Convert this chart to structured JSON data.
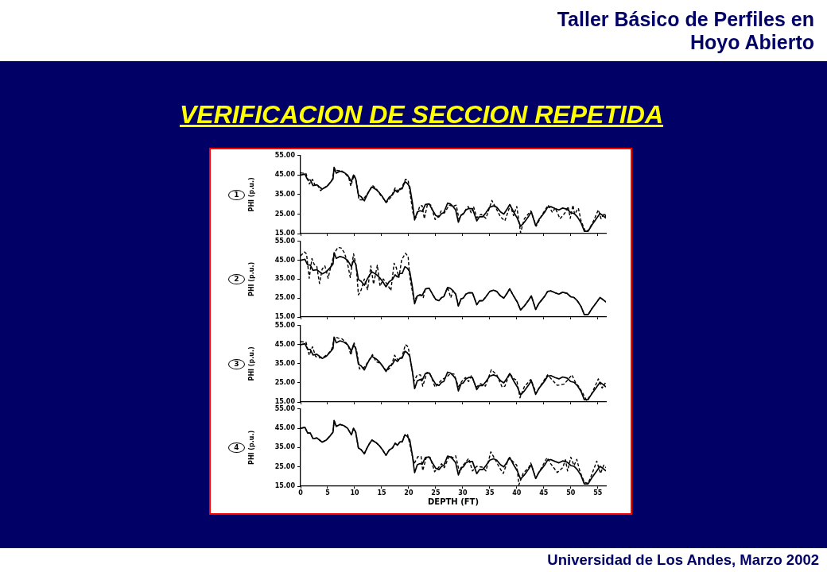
{
  "chart_data": [
    {
      "type": "line",
      "title": "1",
      "ylabel": "PHI (p.u.)",
      "xlim": [
        0,
        56.5
      ],
      "ylim": [
        15,
        55
      ],
      "xticks": [
        0,
        5,
        10,
        15,
        20,
        25,
        30,
        35,
        40,
        45,
        50,
        55
      ],
      "yticks": [
        {
          "value": 15,
          "label": "15.00"
        },
        {
          "value": 25,
          "label": "25.00"
        },
        {
          "value": 35,
          "label": "35.00"
        },
        {
          "value": 45,
          "label": "45.00"
        },
        {
          "value": 55,
          "label": "55.00"
        }
      ],
      "tick_labels": "y",
      "annotations": [
        "VERIFICACION DE SECCION REPETIDA",
        "Taller Básico de Perfiles en Hoyo Abierto",
        "Universidad de Los Andes, Marzo 2002"
      ],
      "series": [
        {
          "color": "#000000",
          "line_style": "solid",
          "x": [
            0,
            0.8,
            1.3,
            1.8,
            2.3,
            3,
            3.5,
            4,
            4.8,
            5.5,
            6,
            6.2,
            6.6,
            7.3,
            8,
            8.7,
            9.4,
            9.8,
            10.2,
            10.7,
            11.2,
            11.8,
            12.3,
            12.7,
            13.2,
            14,
            14.6,
            15.2,
            15.8,
            16.4,
            17,
            17.5,
            17.9,
            18.4,
            18.8,
            19.3,
            19.7,
            20.2,
            20.7,
            21.1,
            21.6,
            22.1,
            22.5,
            23.1,
            23.8,
            24.4,
            25,
            25.6,
            26.1,
            26.5,
            27.2,
            27.7,
            28.2,
            28.7,
            29.2,
            29.7,
            30.1,
            30.6,
            31.1,
            31.8,
            32.6,
            33.1,
            33.7,
            34.3,
            35,
            35.7,
            36.3,
            37,
            37.6,
            38.2,
            38.7,
            39.5,
            40.1,
            40.7,
            41.4,
            42.2,
            42.7,
            43.5,
            44.1,
            44.7,
            45.2,
            45.7,
            46.3,
            47.1,
            47.8,
            48.5,
            49.3,
            50,
            50.6,
            51.2,
            51.9,
            52.5,
            53.2,
            53.9,
            54.7,
            55.4,
            55.9,
            56.5
          ],
          "values": [
            45,
            45.5,
            42.6,
            42.5,
            39.6,
            40,
            38.9,
            37.8,
            39,
            41.2,
            43,
            49,
            46,
            47,
            46.4,
            45,
            41.6,
            45,
            43,
            34.8,
            33.9,
            31.8,
            34.8,
            36.9,
            38.9,
            37.5,
            35.9,
            33.7,
            31,
            33.7,
            34.8,
            37.3,
            36.2,
            38,
            38,
            41.6,
            40.9,
            39,
            30.6,
            22,
            26.1,
            26.7,
            26.4,
            29.9,
            30.2,
            27.1,
            24.3,
            23.6,
            25.3,
            25.7,
            30.6,
            30.2,
            28.9,
            27.1,
            20.8,
            24.6,
            25,
            27.1,
            27.8,
            27.8,
            21.5,
            23.6,
            23.6,
            25.7,
            28.5,
            29.2,
            28.5,
            26.1,
            25,
            27.5,
            29.9,
            25.7,
            22.9,
            18.7,
            20.8,
            23.9,
            26.1,
            19,
            22.2,
            24.3,
            26.1,
            28.5,
            28.8,
            27.8,
            27.1,
            28.1,
            27.5,
            25.7,
            25.3,
            23.6,
            20.5,
            16.2,
            16.2,
            19.4,
            22.5,
            25.3,
            24.3,
            22.9
          ]
        },
        {
          "color": "#000000",
          "line_style": "dashed",
          "x": [
            0,
            1,
            1.6,
            2.2,
            2.7,
            3.2,
            3.7,
            4.3,
            5.1,
            5.8,
            6.3,
            6.9,
            7.5,
            8.3,
            8.9,
            9.3,
            9.9,
            10.3,
            10.8,
            11.5,
            12.3,
            13.3,
            14.1,
            14.7,
            15.9,
            16.7,
            17.5,
            18.1,
            18.7,
            19.4,
            19.9,
            20.8,
            21.3,
            22.1,
            22.5,
            22.9,
            23.5,
            24.1,
            24.9,
            25.5,
            26,
            26.6,
            27.5,
            28.2,
            28.8,
            29.3,
            30.1,
            31,
            31.6,
            32,
            32.6,
            33.4,
            34.3,
            35.4,
            36,
            37,
            37.8,
            38.8,
            39.4,
            40,
            40.7,
            41.4,
            42.6,
            43.6,
            44.6,
            45.8,
            46.6,
            47.1,
            48,
            48.9,
            49.5,
            49.9,
            50.4,
            50.7,
            51.4,
            51.9,
            52.7,
            53.3,
            54.2,
            55.1,
            55.6,
            56.2,
            56.5
          ],
          "values": [
            46.1,
            45.8,
            40.4,
            42.8,
            39.7,
            39.7,
            37,
            38.4,
            39.7,
            42.4,
            48.2,
            47.2,
            47.4,
            45.5,
            43.8,
            39.3,
            45.1,
            41.8,
            32.3,
            32.3,
            35,
            39.7,
            37.7,
            35,
            31,
            33.6,
            38.4,
            36.4,
            38.4,
            42.8,
            42.4,
            25.5,
            23.1,
            29.3,
            29.3,
            22.6,
            30.3,
            29.6,
            22.2,
            23.5,
            26.6,
            25.5,
            29.6,
            28.9,
            29.6,
            22.6,
            25.5,
            28.9,
            25.5,
            28.9,
            23.1,
            24.9,
            22.8,
            32,
            28.9,
            23.5,
            21.5,
            29.6,
            24.2,
            28.9,
            15.4,
            22.6,
            26.6,
            18.8,
            24.2,
            29.6,
            25.8,
            28.2,
            22.6,
            25.5,
            28.9,
            22.8,
            29.6,
            24.9,
            28,
            21.5,
            16.1,
            16.8,
            21.5,
            27.2,
            22.6,
            25.5,
            23.5
          ]
        }
      ]
    },
    {
      "type": "line",
      "title": "2",
      "ylabel": "PHI (p.u.)",
      "xlim": [
        0,
        56.5
      ],
      "ylim": [
        15,
        55
      ],
      "xticks": [
        0,
        5,
        10,
        15,
        20,
        25,
        30,
        35,
        40,
        45,
        50,
        55
      ],
      "yticks": [
        {
          "value": 15,
          "label": "15.00"
        },
        {
          "value": 25,
          "label": "25.00"
        },
        {
          "value": 35,
          "label": "35.00"
        },
        {
          "value": 45,
          "label": "45.00"
        },
        {
          "value": 55,
          "label": "55.00"
        }
      ],
      "tick_labels": "y",
      "series": [
        {
          "color": "#000000",
          "line_style": "solid",
          "x": [
            0,
            0.8,
            1.3,
            1.8,
            2.3,
            3,
            3.5,
            4,
            4.8,
            5.5,
            6,
            6.2,
            6.6,
            7.3,
            8,
            8.7,
            9.4,
            9.8,
            10.2,
            10.7,
            11.2,
            11.8,
            12.3,
            12.7,
            13.2,
            14,
            14.6,
            15.2,
            15.8,
            16.4,
            17,
            17.5,
            17.9,
            18.4,
            18.8,
            19.3,
            19.7,
            20.2,
            20.7,
            21.1,
            21.6,
            22.1,
            22.5,
            23.1,
            23.8,
            24.4,
            25,
            25.6,
            26.1,
            26.5,
            27.2,
            27.7,
            28.2,
            28.7,
            29.2,
            29.7,
            30.1,
            30.6,
            31.1,
            31.8,
            32.6,
            33.1,
            33.7,
            34.3,
            35,
            35.7,
            36.3,
            37,
            37.6,
            38.2,
            38.7,
            39.5,
            40.1,
            40.7,
            41.4,
            42.2,
            42.7,
            43.5,
            44.1,
            44.7,
            45.2,
            45.7,
            46.3,
            47.1,
            47.8,
            48.5,
            49.3,
            50,
            50.6,
            51.2,
            51.9,
            52.5,
            53.2,
            53.9,
            54.7,
            55.4,
            55.9,
            56.5
          ],
          "values": [
            45,
            45.5,
            42.6,
            42.5,
            39.6,
            40,
            38.9,
            37.8,
            39,
            41.2,
            43,
            49,
            46,
            47,
            46.4,
            45,
            41.6,
            45,
            43,
            34.8,
            33.9,
            31.8,
            34.8,
            36.9,
            38.9,
            37.5,
            35.9,
            33.7,
            31,
            33.7,
            34.8,
            37.3,
            36.2,
            38,
            38,
            41.6,
            40.9,
            39,
            30.6,
            22,
            26.1,
            26.7,
            26.4,
            29.9,
            30.2,
            27.1,
            24.3,
            23.6,
            25.3,
            25.7,
            30.6,
            30.2,
            28.9,
            27.1,
            20.8,
            24.6,
            25,
            27.1,
            27.8,
            27.8,
            21.5,
            23.6,
            23.6,
            25.7,
            28.5,
            29.2,
            28.5,
            26.1,
            25,
            27.5,
            29.9,
            25.7,
            22.9,
            18.7,
            20.8,
            23.9,
            26.1,
            19,
            22.2,
            24.3,
            26.1,
            28.5,
            28.8,
            27.8,
            27.1,
            28.1,
            27.5,
            25.7,
            25.3,
            23.6,
            20.5,
            16.2,
            16.2,
            19.4,
            22.5,
            25.3,
            24.3,
            22.9
          ]
        },
        {
          "color": "#000000",
          "line_style": "dashed",
          "x": [
            0,
            0.7,
            1.1,
            1.6,
            2.1,
            2.5,
            3,
            3.5,
            4,
            4.5,
            5.1,
            5.6,
            6.3,
            6.9,
            7.5,
            8.1,
            8.6,
            9.2,
            9.8,
            10.3,
            10.7,
            11.2,
            11.8,
            12.4,
            13,
            13.5,
            14.2,
            14.7,
            15.3,
            16.1,
            16.7,
            17.3,
            17.7,
            18.2,
            18.7,
            19.4,
            19.9,
            20.2,
            21,
            21.6,
            22.1,
            22.7,
            23.1,
            23.8,
            24.4,
            25,
            25.6,
            26.1,
            26.5,
            27.2,
            27.8,
            28.2,
            28.7,
            29.2,
            29.7,
            30.1,
            30.6,
            31.1,
            31.8,
            32.6,
            33.1,
            33.7,
            34.3,
            35,
            35.7,
            36.3,
            37,
            37.6,
            38.2,
            38.7,
            39.5,
            40.1,
            40.7,
            41.4,
            42.2,
            42.7,
            43.5,
            44.1,
            44.7,
            45.2,
            45.7,
            46.3,
            47.1,
            47.8,
            48.5,
            49.3,
            50,
            50.6,
            51.2,
            51.9,
            52.5,
            53.2,
            53.9,
            54.7,
            55.4,
            55.9,
            56.5
          ],
          "values": [
            47.3,
            49.4,
            48.4,
            35.5,
            45.9,
            42.9,
            41.8,
            32.7,
            40.4,
            42,
            35.5,
            41.8,
            49,
            51.8,
            51.5,
            49,
            44.5,
            35.9,
            48.4,
            41.8,
            26.7,
            29.2,
            35.1,
            29.5,
            42,
            32.3,
            42.4,
            31.3,
            35.1,
            32,
            28.9,
            43.4,
            41.1,
            35.9,
            45.2,
            48.7,
            47,
            36.2,
            23.6,
            26.1,
            26.7,
            25.3,
            29.9,
            30.2,
            27.1,
            24.3,
            23.6,
            25.3,
            25.7,
            30.6,
            25.2,
            28.9,
            27.1,
            20.8,
            24.6,
            25,
            27.1,
            27.8,
            27.8,
            21.5,
            23.6,
            23.6,
            25.7,
            28.5,
            29.2,
            28.5,
            26.1,
            25,
            27.5,
            29.9,
            25.7,
            22.9,
            18.7,
            20.8,
            23.9,
            26.1,
            19,
            22.2,
            24.3,
            26.1,
            28.5,
            28.8,
            27.8,
            27.1,
            28.1,
            27.5,
            25.7,
            25.3,
            23.6,
            20.5,
            16.2,
            16.2,
            19.4,
            22.5,
            25.3,
            24.3,
            22.9
          ]
        }
      ]
    },
    {
      "type": "line",
      "title": "3",
      "ylabel": "PHI (p.u.)",
      "xlim": [
        0,
        56.5
      ],
      "ylim": [
        15,
        55
      ],
      "xticks": [
        0,
        5,
        10,
        15,
        20,
        25,
        30,
        35,
        40,
        45,
        50,
        55
      ],
      "yticks": [
        {
          "value": 15,
          "label": "15.00"
        },
        {
          "value": 25,
          "label": "25.00"
        },
        {
          "value": 35,
          "label": "35.00"
        },
        {
          "value": 45,
          "label": "45.00"
        },
        {
          "value": 55,
          "label": "55.00"
        }
      ],
      "tick_labels": "y",
      "series": [
        {
          "color": "#000000",
          "line_style": "solid",
          "x": [
            0,
            0.8,
            1.3,
            1.8,
            2.3,
            3,
            3.5,
            4,
            4.8,
            5.5,
            6,
            6.2,
            6.6,
            7.3,
            8,
            8.7,
            9.4,
            9.8,
            10.2,
            10.7,
            11.2,
            11.8,
            12.3,
            12.7,
            13.2,
            14,
            14.6,
            15.2,
            15.8,
            16.4,
            17,
            17.5,
            17.9,
            18.4,
            18.8,
            19.3,
            19.7,
            20.2,
            20.7,
            21.1,
            21.6,
            22.1,
            22.5,
            23.1,
            23.8,
            24.4,
            25,
            25.6,
            26.1,
            26.5,
            27.2,
            27.7,
            28.2,
            28.7,
            29.2,
            29.7,
            30.1,
            30.6,
            31.1,
            31.8,
            32.6,
            33.1,
            33.7,
            34.3,
            35,
            35.7,
            36.3,
            37,
            37.6,
            38.2,
            38.7,
            39.5,
            40.1,
            40.7,
            41.4,
            42.2,
            42.7,
            43.5,
            44.1,
            44.7,
            45.2,
            45.7,
            46.3,
            47.1,
            47.8,
            48.5,
            49.3,
            50,
            50.6,
            51.2,
            51.9,
            52.5,
            53.2,
            53.9,
            54.7,
            55.4,
            55.9,
            56.5
          ],
          "values": [
            45,
            45.5,
            42.6,
            42.5,
            39.6,
            40,
            38.9,
            37.8,
            39,
            41.2,
            43,
            49,
            46,
            47,
            46.4,
            45,
            41.6,
            45,
            43,
            34.8,
            33.9,
            31.8,
            34.8,
            36.9,
            38.9,
            37.5,
            35.9,
            33.7,
            31,
            33.7,
            34.8,
            37.3,
            36.2,
            38,
            38,
            41.6,
            40.9,
            39,
            30.6,
            22,
            26.1,
            26.7,
            26.4,
            29.9,
            30.2,
            27.1,
            24.3,
            23.6,
            25.3,
            25.7,
            30.6,
            30.2,
            28.9,
            27.1,
            20.8,
            24.6,
            25,
            27.1,
            27.8,
            27.8,
            21.5,
            23.6,
            23.6,
            25.7,
            28.5,
            29.2,
            28.5,
            26.1,
            25,
            27.5,
            29.9,
            25.7,
            22.9,
            18.7,
            20.8,
            23.9,
            26.1,
            19,
            22.2,
            24.3,
            26.1,
            28.5,
            28.8,
            27.8,
            27.1,
            28.1,
            27.5,
            25.7,
            25.3,
            23.6,
            20.5,
            16.2,
            16.2,
            19.4,
            22.5,
            25.3,
            24.3,
            22.9
          ]
        },
        {
          "color": "#000000",
          "line_style": "dashed",
          "x": [
            0,
            1,
            1.6,
            2.2,
            2.8,
            3.5,
            4.2,
            5.1,
            5.8,
            6.3,
            7,
            7.7,
            8.4,
            8.9,
            9.3,
            9.9,
            10.4,
            10.9,
            11.7,
            12.5,
            13.3,
            14,
            14.7,
            15.9,
            16.7,
            17.4,
            18.1,
            18.7,
            19.4,
            19.9,
            21,
            21.6,
            22.2,
            22.6,
            23.4,
            24,
            24.9,
            25.6,
            26.2,
            27.1,
            27.7,
            28.4,
            29.2,
            29.8,
            30.5,
            31.1,
            31.6,
            32.5,
            33.3,
            34.2,
            35.3,
            36.3,
            37.3,
            37.8,
            38.7,
            39.5,
            40,
            40.6,
            41.4,
            42.6,
            43.6,
            44.6,
            45.7,
            46.6,
            47.5,
            48.8,
            49.5,
            50.2,
            50.9,
            51.5,
            52.2,
            52.9,
            53.8,
            54.5,
            55.1,
            55.8,
            56.4
          ],
          "values": [
            46.6,
            46.3,
            39.5,
            43.9,
            38.8,
            38.1,
            38.4,
            40.2,
            42.9,
            49.1,
            48.4,
            48,
            46.1,
            43.9,
            39.5,
            45.9,
            41.5,
            32.3,
            32.9,
            36,
            39.8,
            36,
            35.4,
            31.2,
            33.3,
            39.5,
            36.7,
            38.1,
            45,
            43.9,
            26,
            29.2,
            29.2,
            23.3,
            30.5,
            29.6,
            22.7,
            25,
            26.8,
            28.2,
            29.9,
            29.6,
            23,
            25.7,
            27.8,
            25.7,
            28.8,
            22.7,
            24.6,
            23.3,
            31.9,
            29.2,
            22.7,
            23.3,
            29.9,
            27.1,
            26.4,
            17.2,
            23,
            26.8,
            19.6,
            24.4,
            29.2,
            26.4,
            23.7,
            24.4,
            26.8,
            29.2,
            25,
            23,
            19.6,
            15.9,
            18.9,
            23.3,
            27.1,
            22.3,
            25
          ]
        }
      ]
    },
    {
      "type": "line",
      "title": "4",
      "xlabel": "DEPTH (FT)",
      "ylabel": "PHI (p.u.)",
      "xlim": [
        0,
        56.5
      ],
      "ylim": [
        15,
        55
      ],
      "xticks": [
        0,
        5,
        10,
        15,
        20,
        25,
        30,
        35,
        40,
        45,
        50,
        55
      ],
      "yticks": [
        {
          "value": 15,
          "label": "15.00"
        },
        {
          "value": 25,
          "label": "25.00"
        },
        {
          "value": 35,
          "label": "35.00"
        },
        {
          "value": 45,
          "label": "45.00"
        },
        {
          "value": 55,
          "label": "55.00"
        }
      ],
      "series": [
        {
          "color": "#000000",
          "line_style": "solid",
          "x": [
            0,
            0.8,
            1.3,
            1.8,
            2.3,
            3,
            3.5,
            4,
            4.8,
            5.5,
            6,
            6.2,
            6.6,
            7.3,
            8,
            8.7,
            9.4,
            9.8,
            10.2,
            10.7,
            11.2,
            11.8,
            12.3,
            12.7,
            13.2,
            14,
            14.6,
            15.2,
            15.8,
            16.4,
            17,
            17.5,
            17.9,
            18.4,
            18.8,
            19.3,
            19.7,
            20.2,
            20.7,
            21.1,
            21.6,
            22.1,
            22.5,
            23.1,
            23.8,
            24.4,
            25,
            25.6,
            26.1,
            26.5,
            27.2,
            27.7,
            28.2,
            28.7,
            29.2,
            29.7,
            30.1,
            30.6,
            31.1,
            31.8,
            32.6,
            33.1,
            33.7,
            34.3,
            35,
            35.7,
            36.3,
            37,
            37.6,
            38.2,
            38.7,
            39.5,
            40.1,
            40.7,
            41.4,
            42.2,
            42.7,
            43.5,
            44.1,
            44.7,
            45.2,
            45.7,
            46.3,
            47.1,
            47.8,
            48.5,
            49.3,
            50,
            50.6,
            51.2,
            51.9,
            52.5,
            53.2,
            53.9,
            54.7,
            55.4,
            55.9,
            56.5
          ],
          "values": [
            45,
            45.5,
            42.6,
            42.5,
            39.6,
            40,
            38.9,
            37.8,
            39,
            41.2,
            43,
            49,
            46,
            47,
            46.4,
            45,
            41.6,
            45,
            43,
            34.8,
            33.9,
            31.8,
            34.8,
            36.9,
            38.9,
            37.5,
            35.9,
            33.7,
            31,
            33.7,
            34.8,
            37.3,
            36.2,
            38,
            38,
            41.6,
            40.9,
            39,
            30.6,
            22,
            26.1,
            26.7,
            26.4,
            29.9,
            30.2,
            27.1,
            24.3,
            23.6,
            25.3,
            25.7,
            30.6,
            30.2,
            28.9,
            27.1,
            20.8,
            24.6,
            25,
            27.1,
            27.8,
            27.8,
            21.5,
            23.6,
            23.6,
            25.7,
            28.5,
            29.2,
            28.5,
            26.1,
            25,
            27.5,
            29.9,
            25.7,
            22.9,
            18.7,
            20.8,
            23.9,
            26.1,
            19,
            22.2,
            24.3,
            26.1,
            28.5,
            28.8,
            27.8,
            27.1,
            28.1,
            27.5,
            25.7,
            25.3,
            23.6,
            20.5,
            16.2,
            16.2,
            19.4,
            22.5,
            25.3,
            24.3,
            22.9
          ]
        },
        {
          "color": "#000000",
          "line_style": "dashed",
          "x": [
            0,
            0.8,
            1.3,
            1.8,
            2.3,
            3,
            3.5,
            4,
            4.8,
            5.5,
            6,
            6.2,
            6.6,
            7.3,
            8,
            8.7,
            9.4,
            9.8,
            10.2,
            10.7,
            11.2,
            11.8,
            12.3,
            12.7,
            13.2,
            14,
            14.6,
            15.2,
            15.8,
            16.4,
            17,
            17.5,
            17.9,
            18.4,
            18.8,
            19.3,
            19.8,
            21,
            21.7,
            22.3,
            22.6,
            23.3,
            24,
            24.8,
            25.5,
            26.1,
            26.6,
            27.5,
            28.2,
            28.7,
            29.4,
            30.1,
            31.1,
            31.8,
            32.6,
            33.6,
            34.3,
            35.2,
            35.9,
            36.8,
            37.5,
            38.5,
            39.2,
            40,
            40.4,
            41.2,
            42.2,
            42.6,
            43.5,
            44.6,
            45.6,
            46.3,
            47.5,
            48.5,
            49,
            49.4,
            50,
            50.6,
            51.1,
            51.7,
            52.5,
            53.2,
            53.9,
            54.8,
            55.5,
            56.1,
            56.5
          ],
          "values": [
            45,
            45.5,
            42.6,
            42.5,
            39.6,
            40,
            38.9,
            37.8,
            39,
            41.2,
            43,
            49,
            46,
            47,
            46.4,
            45,
            41.6,
            45,
            43,
            34.8,
            33.9,
            31.8,
            34.8,
            36.9,
            38.9,
            37.5,
            35.9,
            33.7,
            31,
            33.7,
            34.8,
            37.3,
            36.2,
            38,
            38,
            41.6,
            41.8,
            26.6,
            30.3,
            30.3,
            23,
            30.3,
            29.8,
            22.5,
            24.6,
            26.6,
            24.6,
            30.7,
            29.8,
            30.7,
            22.1,
            25.9,
            29.4,
            22.9,
            25.3,
            24.9,
            22.9,
            32.8,
            29.4,
            24.6,
            21.6,
            29.4,
            28,
            25.9,
            15.7,
            21.8,
            24.6,
            27,
            19.1,
            24.6,
            29.8,
            26.6,
            22.1,
            24.6,
            28.7,
            22.9,
            30,
            25.7,
            28.9,
            22.5,
            17.1,
            16.4,
            21.2,
            28,
            21.6,
            25.9,
            24.6
          ]
        }
      ]
    }
  ]
}
